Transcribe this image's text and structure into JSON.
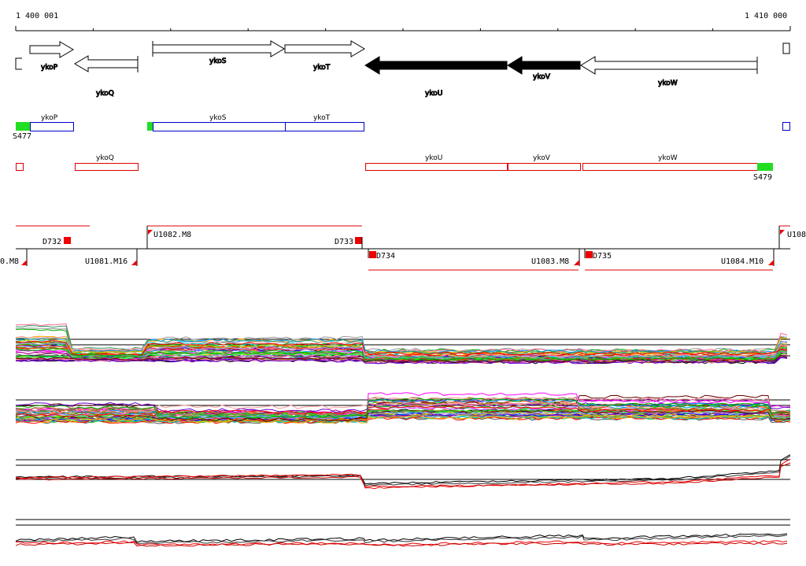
{
  "ruler": {
    "start_label": "1 400 001",
    "end_label": "1 410 000",
    "start": 1400001,
    "end": 1410000
  },
  "genes": {
    "ykoP": "ykoP",
    "ykoQ": "ykoQ",
    "ykoS": "ykoS",
    "ykoT": "ykoT",
    "ykoU": "ykoU",
    "ykoV": "ykoV",
    "ykoW": "ykoW"
  },
  "upper_strand_track": {
    "ykoP": "ykoP",
    "ykoS": "ykoS",
    "ykoT": "ykoT",
    "marker_left": "S477"
  },
  "lower_strand_track": {
    "ykoQ": "ykoQ",
    "ykoU": "ykoU",
    "ykoV": "ykoV",
    "ykoW": "ykoW",
    "marker_right": "S479"
  },
  "regions": {
    "D732": "D732",
    "D733": "D733",
    "D734": "D734",
    "D735": "D735",
    "U1081": "U1081.M16",
    "U1082": "U1082.M8",
    "U1083": "U1083.M8",
    "U1084": "U1084.M10",
    "U_left": "0.M8",
    "U_right": "U108"
  },
  "colors": {
    "upper_track": "#0000cc",
    "lower_track": "#dd0000",
    "marker_green": "#22dd22",
    "marker_red": "#ee0000",
    "filled_gene": "#000000"
  },
  "expression_tracks": [
    {
      "name": "profile-1",
      "bg_line_count": 3
    },
    {
      "name": "profile-2",
      "bg_line_count": 2
    },
    {
      "name": "profile-3",
      "bg_line_count": 3
    },
    {
      "name": "profile-4",
      "bg_line_count": 2
    }
  ]
}
